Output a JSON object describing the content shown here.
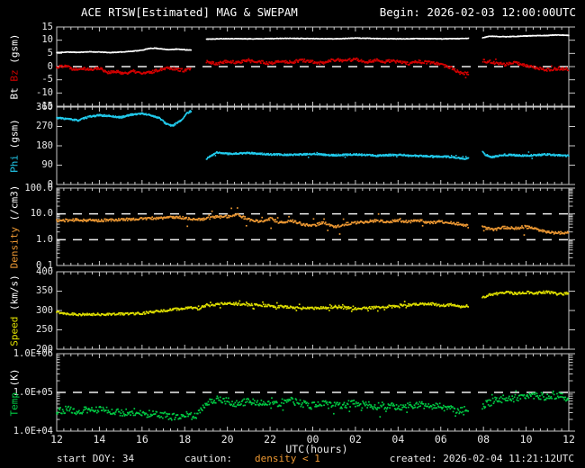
{
  "title": "ACE RTSW[Estimated] MAG & SWEPAM",
  "begin_label": "Begin: 2026-02-03 12:00:00UTC",
  "x_axis": {
    "label": "UTC(hours)",
    "tick_labels": [
      "12",
      "14",
      "16",
      "18",
      "20",
      "22",
      "00",
      "02",
      "04",
      "06",
      "08",
      "10",
      "12"
    ],
    "hours_span": 24
  },
  "footer": {
    "start_doy": "start DOY: 34",
    "caution": "caution:",
    "caution_value": "density < 1",
    "created": "created: 2026-02-04 11:21:12UTC"
  },
  "colors": {
    "bt": "#ffffff",
    "bz": "#d40000",
    "phi": "#22ccee",
    "density": "#ee9933",
    "speed": "#e0e000",
    "temp": "#00cc44",
    "frame": "#c8c8c8",
    "dash": "#f0f0f0",
    "caution_orange": "#ee9933"
  },
  "chart_data": [
    {
      "type": "scatter",
      "name": "bt-bz",
      "scale": "linear",
      "ylim": [
        -15,
        15
      ],
      "yticks": [
        15,
        10,
        5,
        0,
        -5,
        -10,
        -15
      ],
      "ytick_labels": [
        "15",
        "10",
        "5",
        "0",
        "-5",
        "-10",
        "-15"
      ],
      "ref_lines": [
        0
      ],
      "ylabel_parts": [
        {
          "text": "Bt ",
          "color": "#ffffff"
        },
        {
          "text": "Bz",
          "color": "#d40000"
        },
        {
          "text": " (gsm)",
          "color": "#ffffff"
        }
      ],
      "gaps": [
        [
          6.3,
          7.0
        ],
        [
          19.3,
          19.95
        ]
      ],
      "series": [
        {
          "name": "Bt",
          "color": "#ffffff",
          "size": 1.4,
          "step": 0.02,
          "jitter": 0.12,
          "seed": 11,
          "x": [
            0,
            0.5,
            1,
            1.5,
            2,
            2.5,
            3,
            3.5,
            4,
            4.3,
            4.6,
            5,
            5.3,
            5.6,
            6,
            6.3,
            7,
            8,
            9,
            10,
            11,
            12,
            13,
            14,
            15,
            16,
            17,
            18,
            19,
            19.3,
            19.95,
            20.3,
            21,
            22,
            23,
            23.5,
            24
          ],
          "y": [
            5.3,
            5.5,
            5.4,
            5.6,
            5.5,
            5.3,
            5.5,
            5.8,
            6.2,
            6.8,
            7.0,
            6.6,
            6.4,
            6.6,
            6.4,
            6.2,
            10.4,
            10.6,
            10.5,
            10.6,
            10.7,
            10.6,
            10.5,
            10.8,
            10.6,
            10.5,
            10.6,
            10.5,
            10.6,
            10.7,
            10.9,
            11.5,
            11.3,
            11.6,
            11.8,
            12.0,
            11.8
          ]
        },
        {
          "name": "Bz",
          "color": "#d40000",
          "size": 1.7,
          "step": 0.03,
          "jitter": 0.55,
          "seed": 22,
          "outlier": {
            "prob": 0.04,
            "amp": 1.3,
            "from": 7,
            "to": 24
          },
          "x": [
            0,
            0.4,
            0.8,
            1.2,
            1.6,
            2,
            2.4,
            2.8,
            3.2,
            3.6,
            4,
            4.4,
            4.8,
            5.2,
            5.6,
            6,
            6.3,
            7,
            7.5,
            8,
            8.5,
            9,
            9.5,
            10,
            10.5,
            11,
            11.5,
            12,
            12.5,
            13,
            13.5,
            14,
            14.5,
            15,
            15.3,
            15.6,
            16,
            16.5,
            17,
            17.5,
            18,
            18.5,
            18.9,
            19.3,
            19.95,
            20.5,
            21,
            21.5,
            22,
            22.5,
            23,
            23.5,
            24
          ],
          "y": [
            -0.3,
            0.5,
            -1.0,
            -0.5,
            -1.2,
            -0.5,
            -2.2,
            -2.0,
            -2.5,
            -1.8,
            -2.6,
            -2.2,
            -1.2,
            -0.3,
            -1.0,
            -1.5,
            -0.8,
            1.8,
            1.2,
            2.0,
            1.5,
            2.5,
            1.8,
            1.2,
            2.2,
            1.6,
            2.4,
            1.8,
            1.4,
            2.6,
            2.2,
            2.8,
            1.8,
            2.4,
            1.5,
            2.2,
            1.8,
            1.2,
            2.0,
            1.5,
            0.8,
            -0.5,
            -2.3,
            -2.5,
            2.2,
            1.5,
            0.8,
            1.5,
            0.2,
            -0.5,
            -1.2,
            -0.8,
            -1.0
          ]
        }
      ]
    },
    {
      "type": "scatter",
      "name": "phi",
      "scale": "linear",
      "ylim": [
        0,
        360
      ],
      "yticks": [
        360,
        270,
        180,
        90,
        0
      ],
      "ytick_labels": [
        "360",
        "270",
        "180",
        "90",
        "0"
      ],
      "ref_lines": [],
      "ylabel_parts": [
        {
          "text": "Phi",
          "color": "#22ccee"
        },
        {
          "text": " (gsm)",
          "color": "#ffffff"
        }
      ],
      "gaps": [
        [
          6.3,
          7.0
        ],
        [
          19.3,
          19.95
        ]
      ],
      "series": [
        {
          "name": "Phi",
          "color": "#22ccee",
          "size": 1.5,
          "step": 0.02,
          "jitter": 4,
          "seed": 33,
          "outlier": {
            "prob": 0.02,
            "amp": 15,
            "from": 7,
            "to": 24
          },
          "x": [
            0,
            0.5,
            1,
            1.5,
            2,
            2.5,
            3,
            3.5,
            4,
            4.4,
            4.8,
            5.1,
            5.4,
            5.8,
            6.1,
            6.3,
            7,
            7.2,
            7.5,
            8,
            9,
            10,
            11,
            12,
            13,
            14,
            15,
            16,
            17,
            18,
            18.5,
            18.9,
            19.3,
            19.95,
            20.1,
            20.4,
            21,
            22,
            23,
            23.5,
            24
          ],
          "y": [
            310,
            305,
            298,
            315,
            322,
            318,
            312,
            325,
            330,
            322,
            310,
            285,
            272,
            295,
            330,
            342,
            118,
            132,
            148,
            143,
            146,
            140,
            138,
            142,
            136,
            140,
            134,
            138,
            133,
            130,
            128,
            122,
            120,
            152,
            138,
            128,
            138,
            134,
            140,
            136,
            133
          ]
        }
      ]
    },
    {
      "type": "scatter",
      "name": "density",
      "scale": "log",
      "ylim": [
        0.1,
        100
      ],
      "yticks": [
        100,
        10,
        1,
        0.1
      ],
      "ytick_labels": [
        "100.0",
        "10.0",
        "1.0",
        "0.1"
      ],
      "ref_lines": [
        10,
        1
      ],
      "ylabel_parts": [
        {
          "text": "Density",
          "color": "#ee9933"
        },
        {
          "text": " (/cm3)",
          "color": "#ffffff"
        }
      ],
      "gaps": [
        [
          19.3,
          19.95
        ]
      ],
      "series": [
        {
          "name": "Density",
          "color": "#ee9933",
          "size": 1.7,
          "step": 0.035,
          "logjitter": 0.05,
          "seed": 44,
          "outlier": {
            "prob": 0.06,
            "logamp": 0.33,
            "from": 6,
            "to": 24
          },
          "x": [
            0,
            1,
            2,
            3,
            4,
            5,
            5.5,
            6,
            6.5,
            7,
            7.5,
            8,
            8.5,
            9,
            9.5,
            10,
            10.5,
            11,
            11.5,
            12,
            12.5,
            13,
            13.5,
            14,
            14.5,
            15,
            15.5,
            16,
            16.5,
            17,
            17.5,
            18,
            18.5,
            18.9,
            19.3,
            19.95,
            20.5,
            21,
            21.5,
            22,
            22.5,
            23,
            23.5,
            24
          ],
          "y": [
            5.5,
            5.8,
            5.5,
            6.0,
            6.5,
            7.0,
            7.5,
            7.0,
            6.0,
            6.5,
            7.5,
            8.0,
            9.0,
            6.0,
            5.0,
            6.5,
            4.5,
            5.5,
            4.0,
            3.5,
            4.5,
            3.0,
            4.0,
            4.5,
            5.0,
            5.5,
            5.0,
            5.5,
            5.0,
            5.5,
            4.5,
            5.0,
            4.5,
            4.0,
            3.5,
            3.0,
            2.5,
            3.0,
            2.8,
            3.2,
            2.5,
            2.0,
            1.8,
            1.9
          ]
        }
      ]
    },
    {
      "type": "scatter",
      "name": "speed",
      "scale": "linear",
      "ylim": [
        200,
        400
      ],
      "yticks": [
        400,
        350,
        300,
        250,
        200
      ],
      "ytick_labels": [
        "400",
        "350",
        "300",
        "250",
        "200"
      ],
      "ref_lines": [],
      "ylabel_parts": [
        {
          "text": "Speed",
          "color": "#e0e000"
        },
        {
          "text": " (km/s)",
          "color": "#ffffff"
        }
      ],
      "gaps": [
        [
          19.3,
          19.95
        ]
      ],
      "series": [
        {
          "name": "Speed",
          "color": "#e0e000",
          "size": 1.7,
          "step": 0.035,
          "jitter": 3,
          "seed": 55,
          "outlier": {
            "prob": 0.2,
            "amp": 9,
            "from": 6.5,
            "to": 16.5
          },
          "x": [
            0,
            0.5,
            1,
            1.5,
            2,
            3,
            4,
            4.5,
            5,
            5.5,
            6,
            6.5,
            7,
            7.5,
            8,
            9,
            10,
            11,
            12,
            13,
            14,
            15,
            16,
            17,
            17.5,
            18,
            18.5,
            18.9,
            19.3,
            19.95,
            20.3,
            21,
            21.5,
            22,
            22.5,
            23,
            23.5,
            24
          ],
          "y": [
            296,
            292,
            290,
            289,
            290,
            291,
            293,
            296,
            299,
            303,
            305,
            308,
            312,
            316,
            318,
            315,
            312,
            308,
            306,
            308,
            305,
            308,
            312,
            316,
            318,
            312,
            315,
            310,
            312,
            332,
            340,
            347,
            344,
            347,
            345,
            348,
            342,
            344
          ]
        }
      ]
    },
    {
      "type": "scatter",
      "name": "temp",
      "scale": "log",
      "ylim": [
        10000,
        1000000
      ],
      "yticks": [
        1000000,
        100000,
        10000
      ],
      "ytick_labels": [
        "1.0E+06",
        "1.0E+05",
        "1.0E+04"
      ],
      "ref_lines": [
        100000
      ],
      "ylabel_parts": [
        {
          "text": "Temp",
          "color": "#00cc44"
        },
        {
          "text": " (K)",
          "color": "#ffffff"
        }
      ],
      "gaps": [
        [
          19.3,
          19.95
        ]
      ],
      "series": [
        {
          "name": "Temp",
          "color": "#00cc44",
          "size": 1.7,
          "step": 0.035,
          "logjitter": 0.09,
          "seed": 66,
          "outlier": {
            "prob": 0.05,
            "logamp": 0.22,
            "from": 7,
            "to": 24
          },
          "x": [
            0,
            0.5,
            1,
            1.5,
            2,
            2.5,
            3,
            3.5,
            4,
            4.5,
            5,
            5.5,
            6,
            6.5,
            7,
            7.5,
            8,
            8.5,
            9,
            9.5,
            10,
            10.5,
            11,
            11.5,
            12,
            12.5,
            13,
            13.5,
            14,
            14.5,
            15,
            15.5,
            16,
            16.5,
            17,
            17.5,
            18,
            18.5,
            18.9,
            19.3,
            19.95,
            20.5,
            21,
            21.5,
            22,
            22.5,
            23,
            23.5,
            24
          ],
          "y": [
            34000,
            36000,
            32000,
            35000,
            36000,
            34000,
            30000,
            32000,
            29000,
            27000,
            26000,
            23000,
            26000,
            24000,
            55000,
            65000,
            60000,
            50000,
            60000,
            55000,
            50000,
            55000,
            60000,
            50000,
            45000,
            50000,
            45000,
            48000,
            52000,
            46000,
            44000,
            46000,
            42000,
            45000,
            48000,
            44000,
            42000,
            38000,
            34000,
            36000,
            45000,
            60000,
            70000,
            65000,
            75000,
            85000,
            75000,
            85000,
            70000
          ]
        }
      ]
    }
  ]
}
